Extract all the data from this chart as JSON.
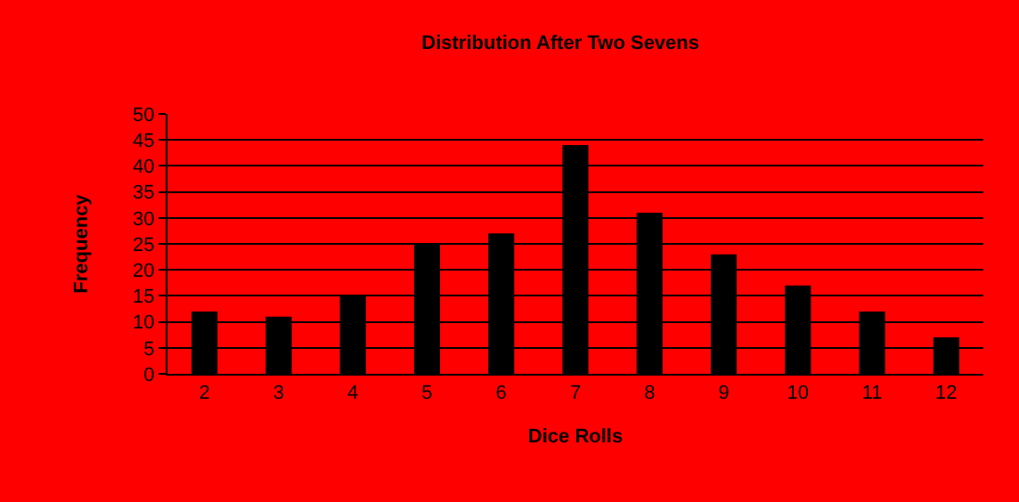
{
  "chart_data": {
    "type": "bar",
    "title": "Distribution After Two Sevens",
    "xlabel": "Dice Rolls",
    "ylabel": "Frequency",
    "categories": [
      "2",
      "3",
      "4",
      "5",
      "6",
      "7",
      "8",
      "9",
      "10",
      "11",
      "12"
    ],
    "values": [
      12,
      11,
      15,
      25,
      27,
      44,
      31,
      23,
      17,
      12,
      7
    ],
    "color": "#000000",
    "ylim": [
      0,
      50
    ],
    "yticks": [
      0,
      5,
      10,
      15,
      20,
      25,
      30,
      35,
      40,
      45,
      50
    ],
    "grid": "y",
    "legend": false
  }
}
